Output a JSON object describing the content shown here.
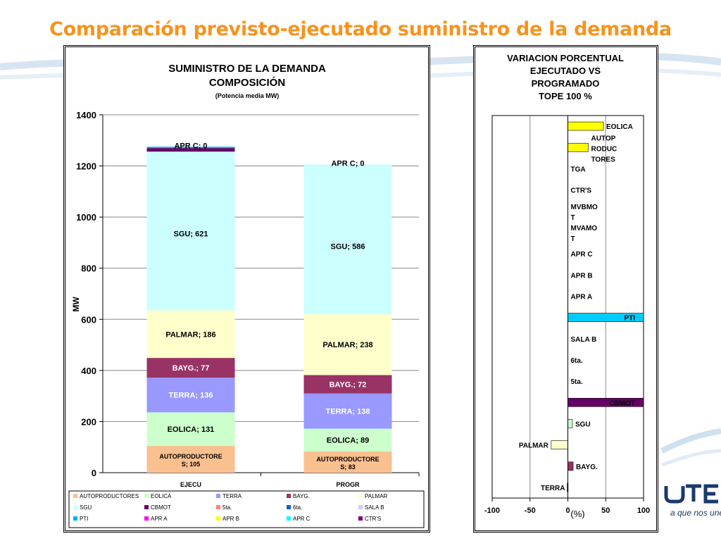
{
  "page_title": "Comparación previsto-ejecutado suministro de la demanda",
  "footer": {
    "slogan": "a que nos une"
  },
  "colors": {
    "title": "#f7931d",
    "brand": "#1b3a6b"
  },
  "chart_data": [
    {
      "type": "bar",
      "stacked": true,
      "title": "SUMINISTRO DE LA DEMANDA",
      "title_line2": "COMPOSICIÓN",
      "subtitle": "(Potencia media MW)",
      "ylabel": "MW",
      "xlabel": "",
      "ylim": [
        0,
        1400
      ],
      "yticks": [
        0,
        200,
        400,
        600,
        800,
        1000,
        1200,
        1400
      ],
      "grid": true,
      "legend_position": "bottom",
      "categories": [
        "EJECU",
        "PROGR"
      ],
      "series": [
        {
          "name": "AUTOPRODUCTORES",
          "color": "#fac090",
          "values": [
            105,
            83
          ]
        },
        {
          "name": "EOLICA",
          "color": "#ccffcc",
          "values": [
            131,
            89
          ]
        },
        {
          "name": "TERRA",
          "color": "#9999ff",
          "values": [
            136,
            138
          ]
        },
        {
          "name": "BAYG.",
          "color": "#993366",
          "values": [
            77,
            72
          ]
        },
        {
          "name": "PALMAR",
          "color": "#ffffcc",
          "values": [
            186,
            238
          ]
        },
        {
          "name": "SGU",
          "color": "#ccffff",
          "values": [
            621,
            586
          ]
        },
        {
          "name": "CBMOT",
          "color": "#660066",
          "values": [
            14,
            0
          ]
        },
        {
          "name": "5ta.",
          "color": "#ff8080",
          "values": [
            0,
            0
          ]
        },
        {
          "name": "6ta.",
          "color": "#0066cc",
          "values": [
            0,
            0
          ]
        },
        {
          "name": "SALA B",
          "color": "#ccccff",
          "values": [
            0,
            0
          ]
        },
        {
          "name": "PTI",
          "color": "#00b0f0",
          "values": [
            5,
            0
          ]
        },
        {
          "name": "APR A",
          "color": "#ff00ff",
          "values": [
            0,
            0
          ]
        },
        {
          "name": "APR B",
          "color": "#ffff00",
          "values": [
            0,
            0
          ]
        },
        {
          "name": "APR C",
          "color": "#00ffff",
          "values": [
            0,
            0
          ]
        },
        {
          "name": "CTR'S",
          "color": "#800080",
          "values": [
            0,
            0
          ]
        }
      ],
      "data_labels": {
        "EJECU": {
          "AUTOPRODUCTORES": "AUTOPRODUCTORE S; 105",
          "EOLICA": "EOLICA; 131",
          "TERRA": "TERRA; 136",
          "BAYG.": "BAYG.; 77",
          "PALMAR": "PALMAR; 186",
          "SGU": "SGU; 621",
          "top": "APR C; 0"
        },
        "PROGR": {
          "AUTOPRODUCTORES": "AUTOPRODUCTORE S; 83",
          "EOLICA": "EOLICA; 89",
          "TERRA": "TERRA; 138",
          "BAYG.": "BAYG.; 72",
          "PALMAR": "PALMAR; 238",
          "SGU": "SGU; 586",
          "top": "APR C; 0"
        }
      }
    },
    {
      "type": "bar",
      "orientation": "horizontal",
      "title": "VARIACION PORCENTUAL EJECUTADO VS PROGRAMADO TOPE 100 %",
      "title_lines": [
        "VARIACION PORCENTUAL",
        "EJECUTADO VS",
        "PROGRAMADO",
        "TOPE 100 %"
      ],
      "xlabel": "(%)",
      "xlim": [
        -100,
        100
      ],
      "xticks": [
        -100,
        -50,
        0,
        50,
        100
      ],
      "grid": true,
      "categories": [
        "EOLICA",
        "AUTOPRODUCTORES",
        "TGA",
        "CTR'S",
        "MVBMOT",
        "MVAMOT",
        "APR C",
        "APR B",
        "APR A",
        "PTI",
        "SALA B",
        "6ta.",
        "5ta.",
        "CBMOT",
        "SGU",
        "PALMAR",
        "BAYG.",
        "TERRA"
      ],
      "category_labels": [
        [
          "EOLICA"
        ],
        [
          "AUTOP",
          "RODUC",
          "TORES"
        ],
        [
          "TGA"
        ],
        [
          "CTR'S"
        ],
        [
          "MVBMO",
          "T"
        ],
        [
          "MVAMO",
          "T"
        ],
        [
          "APR C"
        ],
        [
          "APR B"
        ],
        [
          "APR A"
        ],
        [
          "PTI"
        ],
        [
          "SALA B"
        ],
        [
          "6ta."
        ],
        [
          "5ta."
        ],
        [
          "CBMOT"
        ],
        [
          "SGU"
        ],
        [
          "PALMAR"
        ],
        [
          "BAYG."
        ],
        [
          "TERRA"
        ]
      ],
      "values": [
        47,
        27,
        0,
        0,
        0,
        0,
        0,
        0,
        0,
        100,
        0,
        0,
        0,
        100,
        6,
        -22,
        7,
        -1
      ],
      "colors": [
        "#ffff00",
        "#ffff00",
        "#ffffff",
        "#ffffff",
        "#ffffff",
        "#ffffff",
        "#ffffff",
        "#ffffff",
        "#ffffff",
        "#00ccff",
        "#ffffff",
        "#ffffff",
        "#ffffff",
        "#660066",
        "#ccffcc",
        "#ffffcc",
        "#993366",
        "#9999ff"
      ]
    }
  ]
}
